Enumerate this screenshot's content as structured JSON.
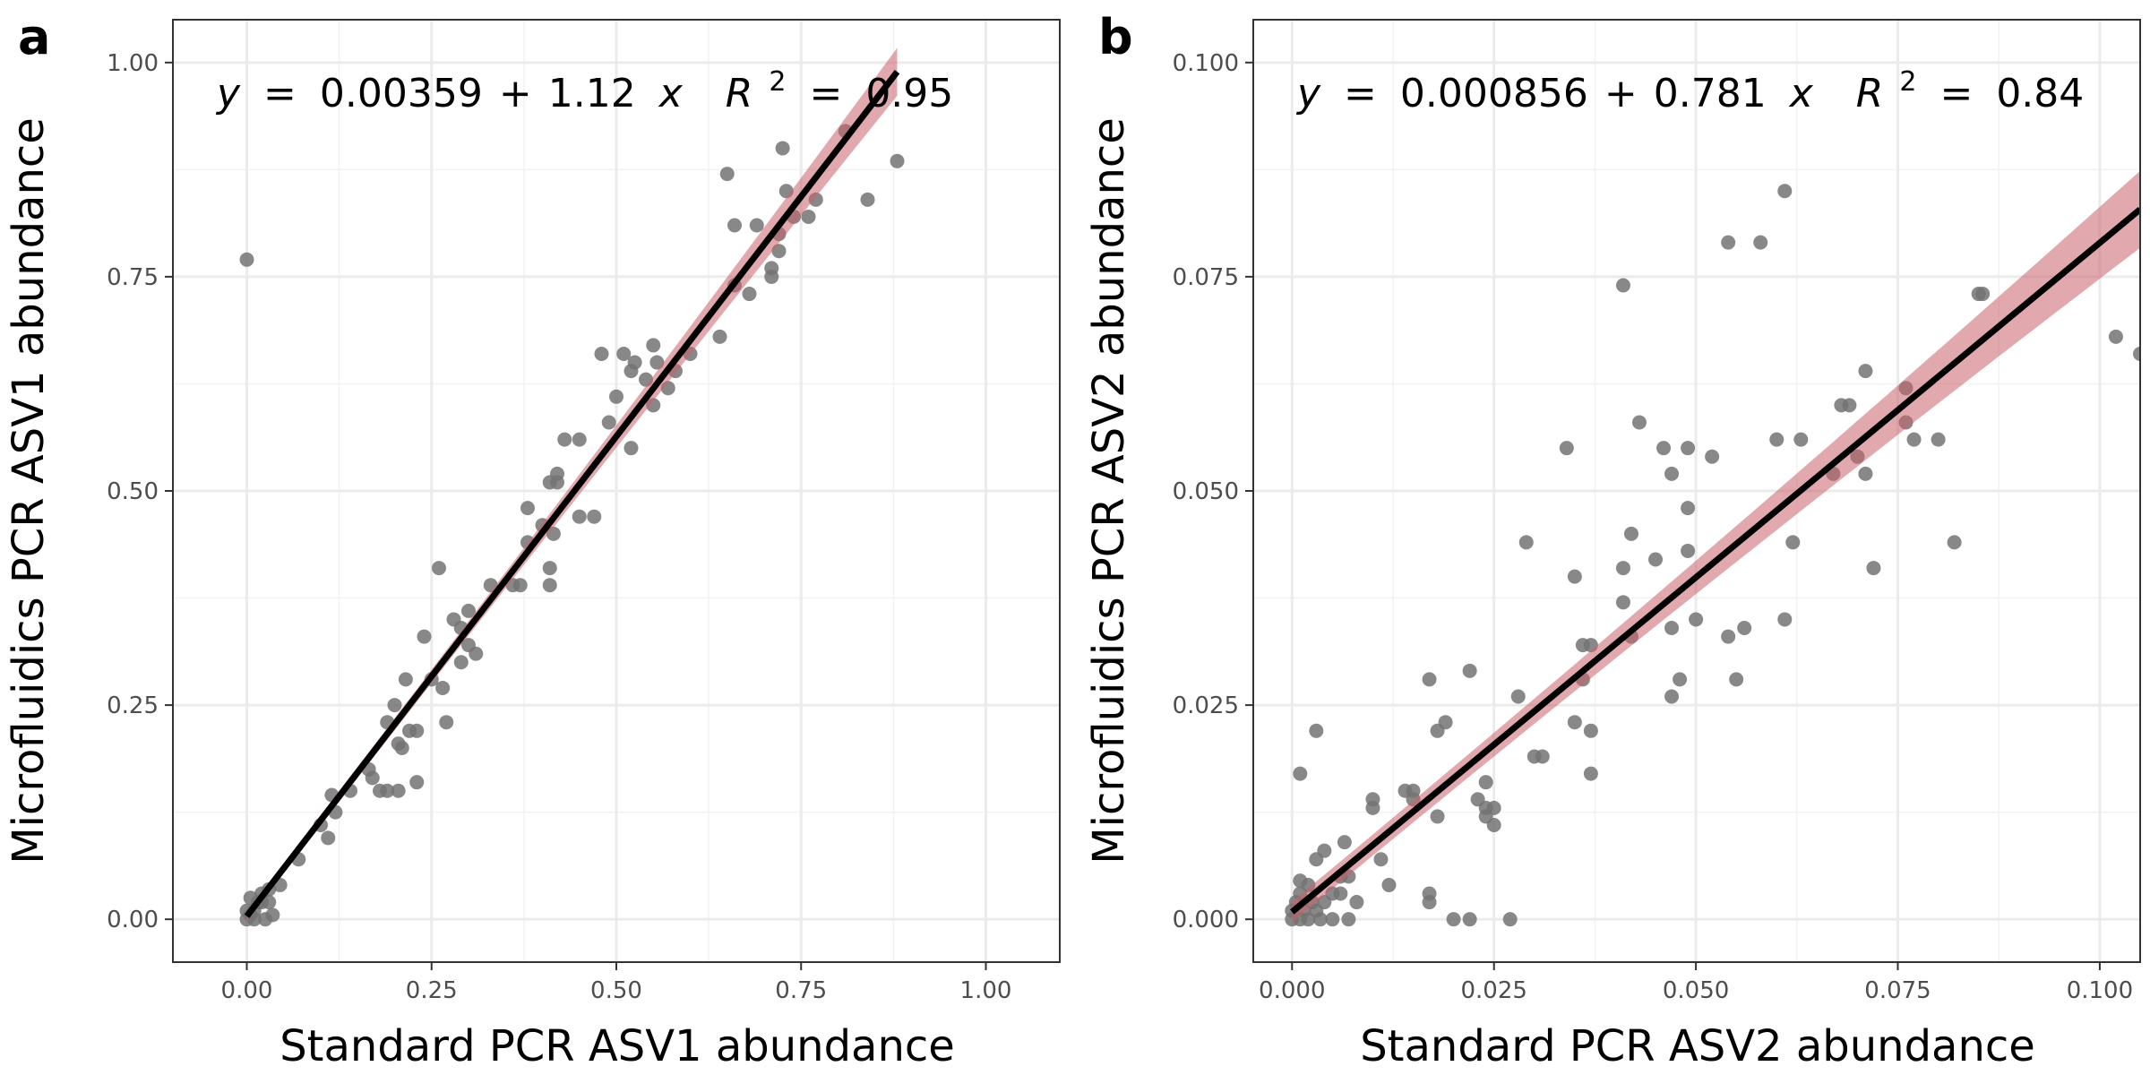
{
  "chart_data": [
    {
      "type": "scatter",
      "panel_label": "a",
      "xlabel": "Standard PCR ASV1 abundance",
      "ylabel": "Microfluidics PCR ASV1 abundance",
      "xlim": [
        -0.1,
        1.1
      ],
      "ylim": [
        -0.05,
        1.05
      ],
      "xticks": [
        "0.00",
        "0.25",
        "0.50",
        "0.75",
        "1.00"
      ],
      "yticks": [
        "0.00",
        "0.25",
        "0.50",
        "0.75",
        "1.00"
      ],
      "grid": true,
      "point_color": "#737373",
      "fit_color": "#000000",
      "ci_color": "#c9636b",
      "equation": {
        "y": "y",
        "eq": "=",
        "intercept": "0.00359",
        "plus": "+",
        "slope": "1.12",
        "x": "x",
        "r2_symbol": "R",
        "r2_exponent": "2",
        "r2_eq": "=",
        "r2_value": "0.95"
      },
      "fit": {
        "intercept": 0.00359,
        "slope": 1.12,
        "x_range": [
          0.0,
          0.88
        ],
        "ci_halfwidth": [
          0.006,
          0.028
        ]
      },
      "points": [
        [
          0.0,
          0.77
        ],
        [
          0.0,
          0.0
        ],
        [
          0.005,
          0.005
        ],
        [
          0.01,
          0.01
        ],
        [
          0.015,
          0.02
        ],
        [
          0.02,
          0.03
        ],
        [
          0.03,
          0.02
        ],
        [
          0.035,
          0.005
        ],
        [
          0.0,
          0.01
        ],
        [
          0.01,
          0.0
        ],
        [
          0.025,
          0.0
        ],
        [
          0.045,
          0.04
        ],
        [
          0.03,
          0.035
        ],
        [
          0.02,
          0.02
        ],
        [
          0.005,
          0.025
        ],
        [
          0.07,
          0.07
        ],
        [
          0.1,
          0.11
        ],
        [
          0.11,
          0.095
        ],
        [
          0.115,
          0.145
        ],
        [
          0.12,
          0.125
        ],
        [
          0.14,
          0.15
        ],
        [
          0.165,
          0.175
        ],
        [
          0.17,
          0.165
        ],
        [
          0.18,
          0.15
        ],
        [
          0.19,
          0.15
        ],
        [
          0.19,
          0.23
        ],
        [
          0.2,
          0.25
        ],
        [
          0.205,
          0.15
        ],
        [
          0.205,
          0.205
        ],
        [
          0.21,
          0.2
        ],
        [
          0.215,
          0.28
        ],
        [
          0.22,
          0.22
        ],
        [
          0.23,
          0.22
        ],
        [
          0.23,
          0.16
        ],
        [
          0.24,
          0.33
        ],
        [
          0.25,
          0.28
        ],
        [
          0.26,
          0.41
        ],
        [
          0.265,
          0.27
        ],
        [
          0.27,
          0.23
        ],
        [
          0.28,
          0.35
        ],
        [
          0.29,
          0.3
        ],
        [
          0.29,
          0.34
        ],
        [
          0.3,
          0.36
        ],
        [
          0.3,
          0.32
        ],
        [
          0.31,
          0.31
        ],
        [
          0.33,
          0.39
        ],
        [
          0.36,
          0.39
        ],
        [
          0.37,
          0.39
        ],
        [
          0.38,
          0.48
        ],
        [
          0.38,
          0.44
        ],
        [
          0.4,
          0.46
        ],
        [
          0.41,
          0.51
        ],
        [
          0.41,
          0.41
        ],
        [
          0.41,
          0.39
        ],
        [
          0.415,
          0.45
        ],
        [
          0.42,
          0.52
        ],
        [
          0.42,
          0.51
        ],
        [
          0.43,
          0.56
        ],
        [
          0.45,
          0.47
        ],
        [
          0.45,
          0.56
        ],
        [
          0.47,
          0.47
        ],
        [
          0.48,
          0.66
        ],
        [
          0.49,
          0.58
        ],
        [
          0.5,
          0.61
        ],
        [
          0.51,
          0.66
        ],
        [
          0.52,
          0.55
        ],
        [
          0.52,
          0.64
        ],
        [
          0.525,
          0.65
        ],
        [
          0.54,
          0.63
        ],
        [
          0.55,
          0.67
        ],
        [
          0.55,
          0.6
        ],
        [
          0.555,
          0.65
        ],
        [
          0.57,
          0.62
        ],
        [
          0.58,
          0.64
        ],
        [
          0.6,
          0.66
        ],
        [
          0.64,
          0.68
        ],
        [
          0.65,
          0.87
        ],
        [
          0.66,
          0.81
        ],
        [
          0.66,
          0.74
        ],
        [
          0.68,
          0.73
        ],
        [
          0.69,
          0.81
        ],
        [
          0.71,
          0.76
        ],
        [
          0.71,
          0.75
        ],
        [
          0.72,
          0.78
        ],
        [
          0.72,
          0.8
        ],
        [
          0.725,
          0.9
        ],
        [
          0.73,
          0.85
        ],
        [
          0.74,
          0.82
        ],
        [
          0.76,
          0.82
        ],
        [
          0.77,
          0.84
        ],
        [
          0.81,
          0.92
        ],
        [
          0.84,
          0.84
        ],
        [
          0.88,
          0.885
        ]
      ]
    },
    {
      "type": "scatter",
      "panel_label": "b",
      "xlabel": "Standard PCR ASV2 abundance",
      "ylabel": "Microfluidics PCR ASV2 abundance",
      "xlim": [
        -0.0048,
        0.105
      ],
      "ylim": [
        -0.005,
        0.105
      ],
      "xticks": [
        "0.000",
        "0.025",
        "0.050",
        "0.075",
        "0.100"
      ],
      "yticks": [
        "0.000",
        "0.025",
        "0.050",
        "0.075",
        "0.100"
      ],
      "grid": true,
      "point_color": "#737373",
      "fit_color": "#000000",
      "ci_color": "#c9636b",
      "equation": {
        "y": "y",
        "eq": "=",
        "intercept": "0.000856",
        "plus": "+",
        "slope": "0.781",
        "x": "x",
        "r2_symbol": "R",
        "r2_exponent": "2",
        "r2_eq": "=",
        "r2_value": "0.84"
      },
      "fit": {
        "intercept": 0.000856,
        "slope": 0.781,
        "x_range": [
          0.0,
          0.105
        ],
        "ci_halfwidth": [
          0.0012,
          0.0045
        ]
      },
      "points": [
        [
          0.0,
          0.0
        ],
        [
          0.0,
          0.001
        ],
        [
          0.0005,
          0.002
        ],
        [
          0.001,
          0.0
        ],
        [
          0.001,
          0.003
        ],
        [
          0.0015,
          0.001
        ],
        [
          0.002,
          0.004
        ],
        [
          0.002,
          0.0
        ],
        [
          0.0025,
          0.002
        ],
        [
          0.003,
          0.001
        ],
        [
          0.003,
          0.007
        ],
        [
          0.0035,
          0.0
        ],
        [
          0.004,
          0.002
        ],
        [
          0.004,
          0.008
        ],
        [
          0.005,
          0.003
        ],
        [
          0.005,
          0.0
        ],
        [
          0.006,
          0.003
        ],
        [
          0.006,
          0.005
        ],
        [
          0.0065,
          0.009
        ],
        [
          0.007,
          0.0
        ],
        [
          0.007,
          0.005
        ],
        [
          0.008,
          0.002
        ],
        [
          0.001,
          0.017
        ],
        [
          0.003,
          0.022
        ],
        [
          0.001,
          0.0045
        ],
        [
          0.01,
          0.014
        ],
        [
          0.01,
          0.013
        ],
        [
          0.011,
          0.007
        ],
        [
          0.012,
          0.004
        ],
        [
          0.014,
          0.015
        ],
        [
          0.015,
          0.014
        ],
        [
          0.015,
          0.015
        ],
        [
          0.017,
          0.028
        ],
        [
          0.017,
          0.003
        ],
        [
          0.017,
          0.002
        ],
        [
          0.018,
          0.012
        ],
        [
          0.018,
          0.022
        ],
        [
          0.019,
          0.023
        ],
        [
          0.02,
          0.0
        ],
        [
          0.022,
          0.029
        ],
        [
          0.022,
          0.0
        ],
        [
          0.023,
          0.014
        ],
        [
          0.024,
          0.016
        ],
        [
          0.024,
          0.013
        ],
        [
          0.024,
          0.012
        ],
        [
          0.025,
          0.011
        ],
        [
          0.025,
          0.013
        ],
        [
          0.027,
          0.0
        ],
        [
          0.028,
          0.026
        ],
        [
          0.029,
          0.044
        ],
        [
          0.03,
          0.019
        ],
        [
          0.031,
          0.019
        ],
        [
          0.034,
          0.055
        ],
        [
          0.035,
          0.023
        ],
        [
          0.035,
          0.04
        ],
        [
          0.036,
          0.032
        ],
        [
          0.036,
          0.028
        ],
        [
          0.037,
          0.017
        ],
        [
          0.037,
          0.022
        ],
        [
          0.037,
          0.032
        ],
        [
          0.041,
          0.074
        ],
        [
          0.041,
          0.041
        ],
        [
          0.041,
          0.037
        ],
        [
          0.042,
          0.045
        ],
        [
          0.042,
          0.033
        ],
        [
          0.043,
          0.058
        ],
        [
          0.045,
          0.042
        ],
        [
          0.046,
          0.055
        ],
        [
          0.047,
          0.052
        ],
        [
          0.047,
          0.034
        ],
        [
          0.047,
          0.026
        ],
        [
          0.048,
          0.028
        ],
        [
          0.049,
          0.055
        ],
        [
          0.049,
          0.043
        ],
        [
          0.049,
          0.048
        ],
        [
          0.05,
          0.035
        ],
        [
          0.052,
          0.054
        ],
        [
          0.054,
          0.079
        ],
        [
          0.054,
          0.033
        ],
        [
          0.055,
          0.028
        ],
        [
          0.056,
          0.034
        ],
        [
          0.058,
          0.079
        ],
        [
          0.06,
          0.056
        ],
        [
          0.061,
          0.085
        ],
        [
          0.061,
          0.035
        ],
        [
          0.062,
          0.044
        ],
        [
          0.063,
          0.056
        ],
        [
          0.067,
          0.052
        ],
        [
          0.068,
          0.06
        ],
        [
          0.069,
          0.06
        ],
        [
          0.07,
          0.054
        ],
        [
          0.071,
          0.064
        ],
        [
          0.071,
          0.052
        ],
        [
          0.072,
          0.041
        ],
        [
          0.076,
          0.062
        ],
        [
          0.076,
          0.058
        ],
        [
          0.077,
          0.056
        ],
        [
          0.08,
          0.056
        ],
        [
          0.082,
          0.044
        ],
        [
          0.085,
          0.073
        ],
        [
          0.0855,
          0.073
        ],
        [
          0.102,
          0.068
        ],
        [
          0.105,
          0.066
        ]
      ]
    }
  ]
}
